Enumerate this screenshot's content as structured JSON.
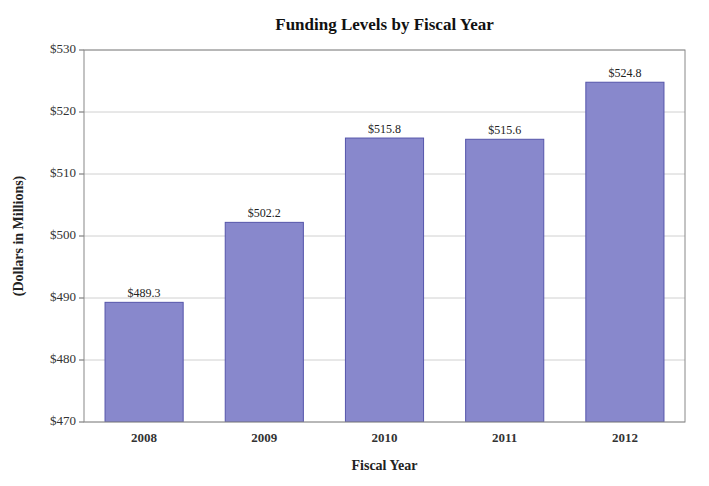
{
  "chart_data": {
    "type": "bar",
    "title": "Funding Levels by Fiscal Year",
    "x_label": "Fiscal Year",
    "y_label": "(Dollars in Millions)",
    "categories": [
      "2008",
      "2009",
      "2010",
      "2011",
      "2012"
    ],
    "values": [
      489.3,
      502.2,
      515.8,
      515.6,
      524.8
    ],
    "value_labels": [
      "$489.3",
      "$502.2",
      "$515.8",
      "$515.6",
      "$524.8"
    ],
    "color": "#8888cc",
    "ylim": [
      470,
      530
    ],
    "yticks": [
      {
        "value": 470,
        "label": "$470"
      },
      {
        "value": 480,
        "label": "$480"
      },
      {
        "value": 490,
        "label": "$490"
      },
      {
        "value": 500,
        "label": "$500"
      },
      {
        "value": 510,
        "label": "$510"
      },
      {
        "value": 520,
        "label": "$520"
      },
      {
        "value": 530,
        "label": "$530"
      }
    ],
    "grid": true,
    "data_labels": true
  }
}
